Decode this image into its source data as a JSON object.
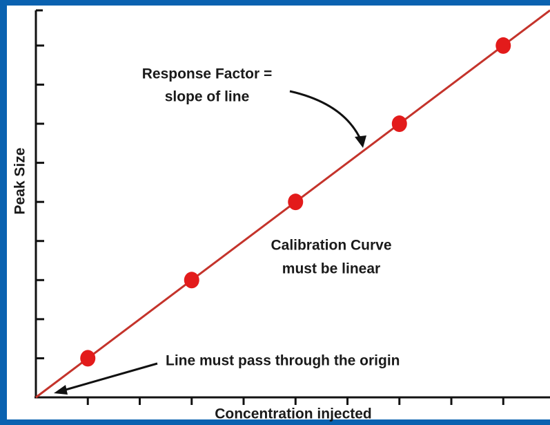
{
  "chart_data": {
    "type": "scatter",
    "y_label": "Peak Size",
    "x_label": "Concentration injected",
    "annotations": [
      "Response Factor =",
      "slope of line",
      "Calibration Curve",
      "must be linear",
      "Line must pass through the origin"
    ],
    "series": [
      {
        "color": "#e31b1b",
        "x": [
          1,
          3,
          5,
          7,
          9
        ],
        "values": [
          1,
          3,
          5,
          7,
          9
        ]
      }
    ],
    "fit_line": {
      "color": "#c4332b",
      "x": [
        0,
        9.9
      ],
      "values": [
        0,
        9.9
      ]
    },
    "xlim": [
      0,
      9.9
    ],
    "ylim": [
      0,
      9.9
    ],
    "xticks": [
      1,
      2,
      3,
      4,
      5,
      6,
      7,
      8,
      9
    ],
    "yticks": [
      1,
      2,
      3,
      4,
      5,
      6,
      7,
      8,
      9
    ]
  }
}
